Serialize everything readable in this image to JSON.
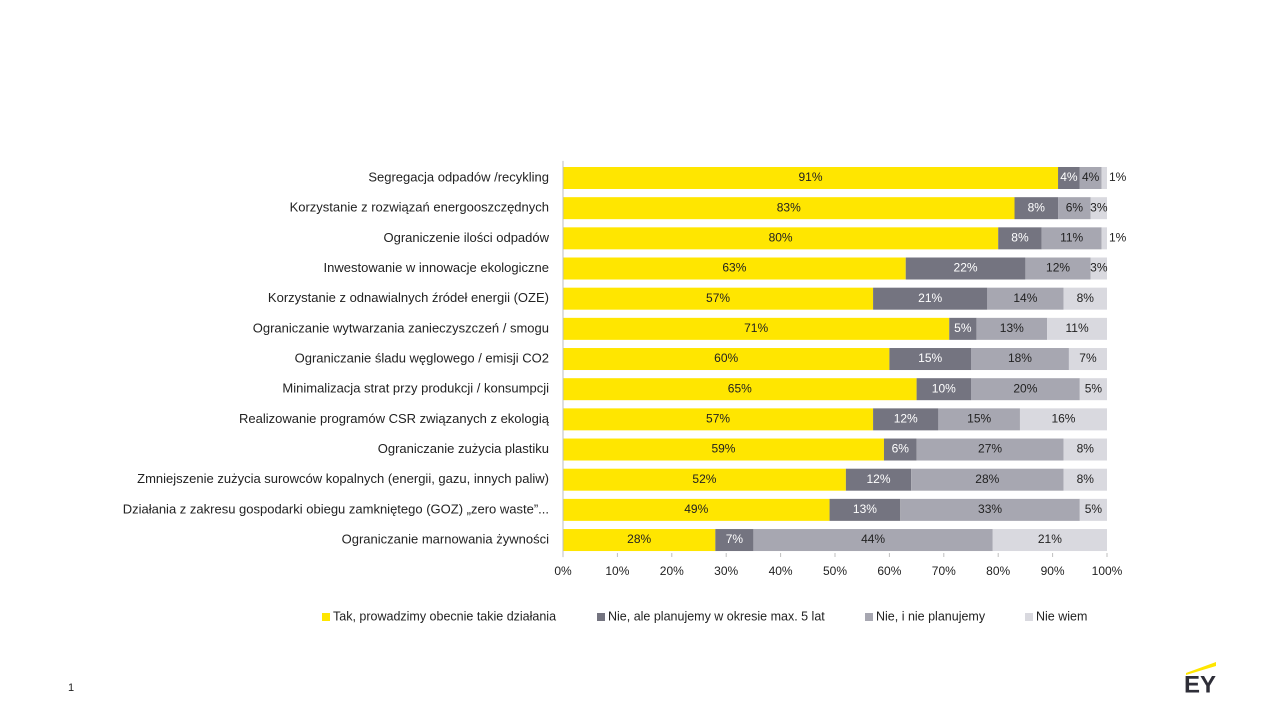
{
  "chart_data": {
    "type": "stacked-bar-horizontal",
    "categories": [
      "Segregacja odpadów /recykling",
      "Korzystanie z rozwiązań energooszczędnych",
      "Ograniczenie ilości odpadów",
      "Inwestowanie w innowacje ekologiczne",
      "Korzystanie z odnawialnych źródeł energii (OZE)",
      "Ograniczanie wytwarzania zanieczyszczeń / smogu",
      "Ograniczanie śladu węglowego / emisji CO2",
      "Minimalizacja strat przy produkcji / konsumpcji",
      "Realizowanie programów CSR związanych z ekologią",
      "Ograniczanie zużycia plastiku",
      "Zmniejszenie zużycia surowców kopalnych (energii, gazu, innych paliw)",
      "Działania z zakresu gospodarki obiegu zamkniętego (GOZ) „zero waste”...",
      "Ograniczanie marnowania żywności"
    ],
    "series": [
      {
        "name": "Tak, prowadzimy obecnie takie działania",
        "color": "#ffe600",
        "values": [
          91,
          83,
          80,
          63,
          57,
          71,
          60,
          65,
          57,
          59,
          52,
          49,
          28
        ],
        "value_labels": [
          "91%",
          "83%",
          "80%",
          "63%",
          "57%",
          "71%",
          "60%",
          "65%",
          "57%",
          "59%",
          "52%",
          "49%",
          "28%"
        ]
      },
      {
        "name": "Nie, ale planujemy w okresie max. 5 lat",
        "color": "#747480",
        "values": [
          4,
          8,
          8,
          22,
          21,
          5,
          15,
          10,
          12,
          6,
          12,
          13,
          7
        ],
        "value_labels": [
          "4%",
          "8%",
          "8%",
          "22%",
          "21%",
          "5%",
          "15%",
          "10%",
          "12%",
          "6%",
          "12%",
          "13%",
          "7%"
        ]
      },
      {
        "name": "Nie, i nie planujemy",
        "color": "#a7a7b1",
        "values": [
          4,
          6,
          11,
          12,
          14,
          13,
          18,
          20,
          15,
          27,
          28,
          33,
          44
        ],
        "value_labels": [
          "4%",
          "6%",
          "11%",
          "12%",
          "14%",
          "13%",
          "18%",
          "20%",
          "15%",
          "27%",
          "28%",
          "33%",
          "44%"
        ]
      },
      {
        "name": "Nie wiem",
        "color": "#d9d9df",
        "values": [
          1,
          3,
          1,
          3,
          8,
          11,
          7,
          5,
          16,
          8,
          8,
          5,
          21
        ],
        "value_labels": [
          "1%",
          "3%",
          "1%",
          "3%",
          "8%",
          "11%",
          "7%",
          "5%",
          "16%",
          "8%",
          "8%",
          "5%",
          "21%"
        ]
      }
    ],
    "xlim": [
      0,
      100
    ],
    "xticks": [
      {
        "value": 0,
        "label": "0%"
      },
      {
        "value": 10,
        "label": "10%"
      },
      {
        "value": 20,
        "label": "20%"
      },
      {
        "value": 30,
        "label": "30%"
      },
      {
        "value": 40,
        "label": "40%"
      },
      {
        "value": 50,
        "label": "50%"
      },
      {
        "value": 60,
        "label": "60%"
      },
      {
        "value": 70,
        "label": "70%"
      },
      {
        "value": 80,
        "label": "80%"
      },
      {
        "value": 90,
        "label": "90%"
      },
      {
        "value": 100,
        "label": "100%"
      }
    ],
    "legend": "bottom"
  },
  "page_number": "1",
  "logo": "EY"
}
